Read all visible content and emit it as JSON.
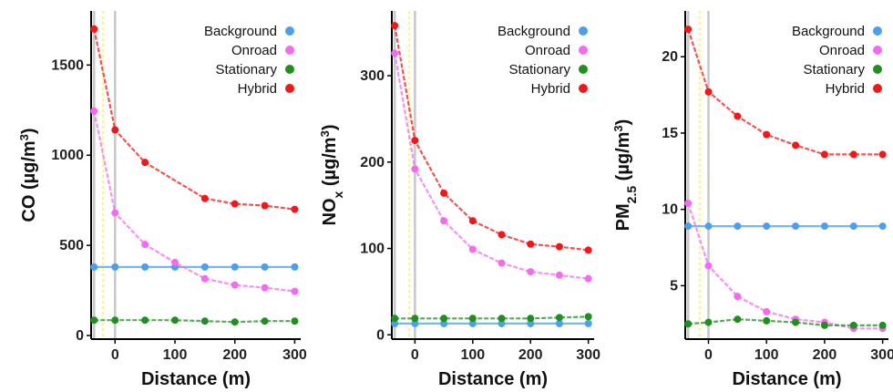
{
  "chart_data": [
    {
      "type": "line",
      "xlabel": "Distance (m)",
      "ylabel": "CO (µg/m³)",
      "xlim": [
        -40,
        310
      ],
      "ylim": [
        -20,
        1800
      ],
      "xticks": [
        0,
        100,
        200,
        300
      ],
      "yticks": [
        0,
        500,
        1000,
        1500
      ],
      "vlines": [
        -35,
        -20,
        0
      ],
      "legend_position": "top-right",
      "series": [
        {
          "name": "Background",
          "color": "#4c9ff0",
          "x": [
            -35,
            0,
            50,
            100,
            150,
            200,
            250,
            300
          ],
          "y": [
            380,
            380,
            380,
            380,
            380,
            380,
            380,
            380
          ]
        },
        {
          "name": "Onroad",
          "color": "#f36cf0",
          "x": [
            -35,
            0,
            50,
            100,
            150,
            200,
            250,
            300
          ],
          "y": [
            1245,
            680,
            505,
            405,
            315,
            280,
            265,
            245
          ]
        },
        {
          "name": "Stationary",
          "color": "#1f8f1f",
          "x": [
            -35,
            0,
            50,
            100,
            150,
            200,
            250,
            300
          ],
          "y": [
            85,
            85,
            85,
            85,
            80,
            75,
            80,
            80
          ]
        },
        {
          "name": "Hybrid",
          "color": "#f01818",
          "x": [
            -35,
            0,
            50,
            100,
            150,
            200,
            250,
            300
          ],
          "y": [
            1700,
            1140,
            960,
            null,
            760,
            730,
            720,
            700
          ]
        }
      ]
    },
    {
      "type": "line",
      "xlabel": "Distance (m)",
      "ylabel": "NOx (µg/m³)",
      "xlim": [
        -40,
        310
      ],
      "ylim": [
        -5,
        375
      ],
      "xticks": [
        0,
        100,
        200,
        300
      ],
      "yticks": [
        0,
        100,
        200,
        300
      ],
      "vlines": [
        -35,
        -10,
        0
      ],
      "legend_position": "top-right",
      "series": [
        {
          "name": "Background",
          "color": "#4c9ff0",
          "x": [
            -35,
            0,
            50,
            100,
            150,
            200,
            250,
            300
          ],
          "y": [
            13,
            13,
            13,
            13,
            13,
            13,
            13,
            13
          ]
        },
        {
          "name": "Onroad",
          "color": "#f36cf0",
          "x": [
            -35,
            0,
            50,
            100,
            150,
            200,
            250,
            300
          ],
          "y": [
            326,
            192,
            132,
            99,
            83,
            73,
            69,
            65
          ]
        },
        {
          "name": "Stationary",
          "color": "#1f8f1f",
          "x": [
            -35,
            0,
            50,
            100,
            150,
            200,
            250,
            300
          ],
          "y": [
            19,
            19,
            19,
            19,
            19,
            19,
            20,
            21
          ]
        },
        {
          "name": "Hybrid",
          "color": "#f01818",
          "x": [
            -35,
            0,
            50,
            100,
            150,
            200,
            250,
            300
          ],
          "y": [
            358,
            225,
            164,
            132,
            116,
            105,
            102,
            98
          ]
        }
      ]
    },
    {
      "type": "line",
      "xlabel": "Distance (m)",
      "ylabel": "PM2.5 (µg/m³)",
      "xlim": [
        -40,
        310
      ],
      "ylim": [
        1.5,
        23
      ],
      "xticks": [
        0,
        100,
        200,
        300
      ],
      "yticks": [
        5,
        10,
        15,
        20
      ],
      "vlines": [
        -35,
        -15,
        0
      ],
      "legend_position": "top-right",
      "series": [
        {
          "name": "Background",
          "color": "#4c9ff0",
          "x": [
            -35,
            0,
            50,
            100,
            150,
            200,
            250,
            300
          ],
          "y": [
            8.9,
            8.9,
            8.9,
            8.9,
            8.9,
            8.9,
            8.9,
            8.9
          ]
        },
        {
          "name": "Onroad",
          "color": "#f36cf0",
          "x": [
            -35,
            0,
            50,
            100,
            150,
            200,
            250,
            300
          ],
          "y": [
            10.4,
            6.3,
            4.3,
            3.3,
            2.8,
            2.6,
            2.2,
            2.2
          ]
        },
        {
          "name": "Stationary",
          "color": "#1f8f1f",
          "x": [
            -35,
            0,
            50,
            100,
            150,
            200,
            250,
            300
          ],
          "y": [
            2.5,
            2.6,
            2.8,
            2.7,
            2.6,
            2.4,
            2.4,
            2.4
          ]
        },
        {
          "name": "Hybrid",
          "color": "#f01818",
          "x": [
            -35,
            0,
            50,
            100,
            150,
            200,
            250,
            300
          ],
          "y": [
            21.8,
            17.7,
            16.1,
            14.9,
            14.2,
            13.6,
            13.6,
            13.6
          ]
        }
      ]
    }
  ]
}
